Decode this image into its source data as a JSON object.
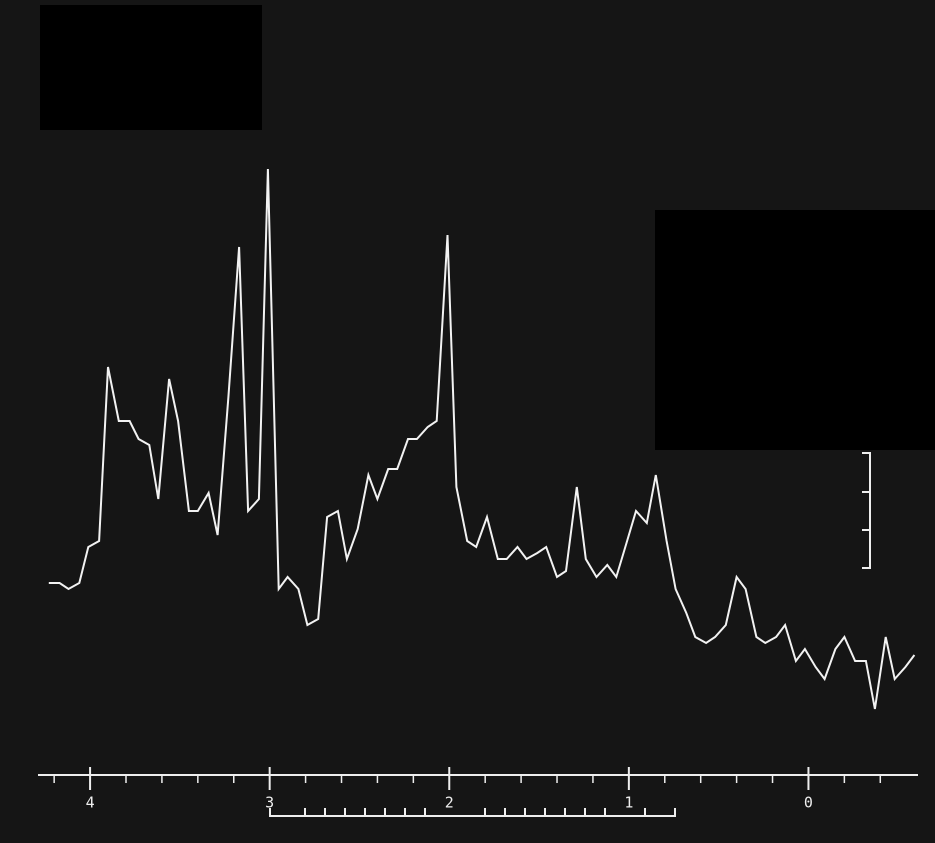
{
  "chart_data": {
    "type": "line",
    "x": [
      4.23,
      4.17,
      4.12,
      4.06,
      4.01,
      3.95,
      3.9,
      3.84,
      3.78,
      3.73,
      3.67,
      3.62,
      3.56,
      3.51,
      3.45,
      3.4,
      3.34,
      3.29,
      3.23,
      3.17,
      3.12,
      3.06,
      3.01,
      2.95,
      2.9,
      2.84,
      2.79,
      2.73,
      2.68,
      2.62,
      2.57,
      2.51,
      2.45,
      2.4,
      2.34,
      2.29,
      2.23,
      2.18,
      2.12,
      2.07,
      2.01,
      1.96,
      1.9,
      1.85,
      1.79,
      1.73,
      1.68,
      1.62,
      1.57,
      1.51,
      1.46,
      1.4,
      1.35,
      1.29,
      1.24,
      1.18,
      1.12,
      1.07,
      1.01,
      0.96,
      0.9,
      0.85,
      0.79,
      0.74,
      0.68,
      0.63,
      0.57,
      0.52,
      0.46,
      0.4,
      0.35,
      0.29,
      0.24,
      0.18,
      0.13,
      0.07,
      0.02,
      -0.04,
      -0.09,
      -0.15,
      -0.2,
      -0.26,
      -0.32,
      -0.37,
      -0.43,
      -0.48,
      -0.54,
      -0.59
    ],
    "values": [
      32,
      32,
      31,
      32,
      38,
      39,
      68,
      59,
      59,
      56,
      55,
      46,
      66,
      59,
      44,
      44,
      47,
      40,
      63,
      88,
      44,
      46,
      101,
      31,
      33,
      31,
      25,
      26,
      43,
      44,
      36,
      41,
      50,
      46,
      51,
      51,
      56,
      56,
      58,
      59,
      90,
      48,
      39,
      38,
      43,
      36,
      36,
      38,
      36,
      37,
      38,
      33,
      34,
      48,
      36,
      33,
      35,
      33,
      39,
      44,
      42,
      50,
      39,
      31,
      27,
      23,
      22,
      23,
      25,
      33,
      31,
      23,
      22,
      23,
      25,
      19,
      21,
      18,
      16,
      21,
      23,
      19,
      19,
      11,
      23,
      16,
      18,
      20
    ],
    "color": "#f2f2f2",
    "xlim": [
      4.29,
      -0.61
    ],
    "ylim": [
      0,
      110
    ],
    "xticks": [
      4,
      3,
      2,
      1,
      0
    ],
    "xminorticks": [
      4.2,
      3.8,
      3.6,
      3.4,
      3.2,
      2.8,
      2.6,
      2.4,
      2.2,
      1.8,
      1.6,
      1.4,
      1.2,
      0.8,
      0.6,
      0.4,
      0.2,
      -0.2,
      -0.4
    ]
  }
}
